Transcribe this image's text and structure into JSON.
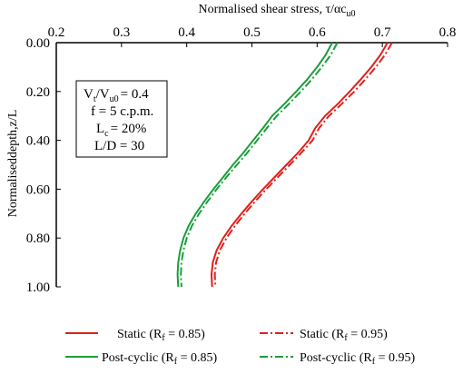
{
  "chart_data": {
    "type": "line",
    "title": "",
    "xlabel": "Normalised shear stress, τ/αc",
    "xlabel_sub": "u0",
    "ylabel": "Normaliseddepth,z/L",
    "x_axis_position": "top",
    "y_axis_inverted": true,
    "xlim": [
      0.2,
      0.8
    ],
    "ylim": [
      0.0,
      1.0
    ],
    "x_ticks": [
      "0.2",
      "0.3",
      "0.4",
      "0.5",
      "0.6",
      "0.7",
      "0.8"
    ],
    "y_ticks": [
      "0.00",
      "0.20",
      "0.40",
      "0.60",
      "0.80",
      "1.00"
    ],
    "grid": false,
    "legend_position": "bottom",
    "annotation": {
      "line1_main": "V",
      "line1_sub1": "t",
      "line1_mid": "/V",
      "line1_sub2": "u0",
      "line1_end": "= 0.4",
      "line2": "f = 5 c.p.m.",
      "line3_main": "L",
      "line3_sub": "c",
      "line3_end": "= 20%",
      "line4": "L/D = 30"
    },
    "series": [
      {
        "name": "Static (Rf = 0.85)",
        "legend_prefix": "Static (R",
        "legend_sub": "f",
        "legend_suffix": " = 0.85)",
        "color": "#e0201b",
        "dash": "solid",
        "x": [
          0.708,
          0.697,
          0.683,
          0.667,
          0.65,
          0.632,
          0.612,
          0.597,
          0.587,
          0.571,
          0.553,
          0.535,
          0.517,
          0.5,
          0.484,
          0.469,
          0.456,
          0.446,
          0.44,
          0.438,
          0.439
        ],
        "y": [
          0.0,
          0.05,
          0.1,
          0.15,
          0.2,
          0.25,
          0.3,
          0.35,
          0.4,
          0.45,
          0.5,
          0.55,
          0.6,
          0.65,
          0.7,
          0.75,
          0.8,
          0.85,
          0.9,
          0.95,
          1.0
        ]
      },
      {
        "name": "Static (Rf = 0.95)",
        "legend_prefix": "Static (R",
        "legend_sub": "f",
        "legend_suffix": " = 0.95)",
        "color": "#e0201b",
        "dash": "dashdot",
        "x": [
          0.715,
          0.704,
          0.69,
          0.674,
          0.657,
          0.638,
          0.618,
          0.603,
          0.593,
          0.576,
          0.558,
          0.54,
          0.522,
          0.505,
          0.489,
          0.474,
          0.461,
          0.451,
          0.445,
          0.443,
          0.444
        ],
        "y": [
          0.0,
          0.05,
          0.1,
          0.15,
          0.2,
          0.25,
          0.3,
          0.35,
          0.4,
          0.45,
          0.5,
          0.55,
          0.6,
          0.65,
          0.7,
          0.75,
          0.8,
          0.85,
          0.9,
          0.95,
          1.0
        ]
      },
      {
        "name": "Post-cyclic (Rf = 0.85)",
        "legend_prefix": "Post-cyclic (R",
        "legend_sub": "f",
        "legend_suffix": " = 0.85)",
        "color": "#1a9e3a",
        "dash": "solid",
        "x": [
          0.623,
          0.613,
          0.6,
          0.585,
          0.568,
          0.55,
          0.531,
          0.517,
          0.502,
          0.487,
          0.471,
          0.456,
          0.441,
          0.427,
          0.414,
          0.403,
          0.395,
          0.39,
          0.387,
          0.386,
          0.387
        ],
        "y": [
          0.0,
          0.05,
          0.1,
          0.15,
          0.2,
          0.25,
          0.3,
          0.35,
          0.4,
          0.45,
          0.5,
          0.55,
          0.6,
          0.65,
          0.7,
          0.75,
          0.8,
          0.85,
          0.9,
          0.95,
          1.0
        ]
      },
      {
        "name": "Post-cyclic (Rf = 0.95)",
        "legend_prefix": "Post-cyclic (R",
        "legend_sub": "f",
        "legend_suffix": " = 0.95)",
        "color": "#1a9e3a",
        "dash": "dashdot",
        "x": [
          0.631,
          0.621,
          0.607,
          0.592,
          0.575,
          0.557,
          0.538,
          0.523,
          0.508,
          0.493,
          0.477,
          0.461,
          0.446,
          0.432,
          0.419,
          0.408,
          0.4,
          0.395,
          0.392,
          0.391,
          0.392
        ],
        "y": [
          0.0,
          0.05,
          0.1,
          0.15,
          0.2,
          0.25,
          0.3,
          0.35,
          0.4,
          0.45,
          0.5,
          0.55,
          0.6,
          0.65,
          0.7,
          0.75,
          0.8,
          0.85,
          0.9,
          0.95,
          1.0
        ]
      }
    ]
  }
}
